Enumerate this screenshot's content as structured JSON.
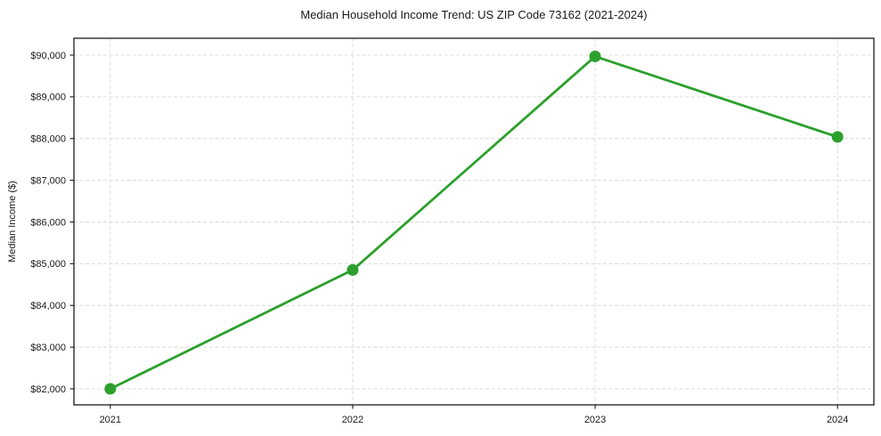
{
  "chart_data": {
    "type": "line",
    "title": "Median Household Income Trend: US ZIP Code 73162 (2021-2024)",
    "xlabel": "",
    "ylabel": "Median Income ($)",
    "categories": [
      "2021",
      "2022",
      "2023",
      "2024"
    ],
    "series": [
      {
        "name": "Median Household Income",
        "values": [
          82000,
          84850,
          89970,
          88040
        ]
      }
    ],
    "yticks": [
      82000,
      83000,
      84000,
      85000,
      86000,
      87000,
      88000,
      89000,
      90000
    ],
    "ytick_labels": [
      "$82,000",
      "$83,000",
      "$84,000",
      "$85,000",
      "$86,000",
      "$87,000",
      "$88,000",
      "$89,000",
      "$90,000"
    ],
    "ylim": [
      81616,
      90405
    ],
    "grid": "on",
    "grid_line_style": "dashed",
    "legend_position": "none",
    "colors": {
      "line": "#2ca02c",
      "marker": "#2ca02c",
      "grid": "#d9d9d9",
      "axis_border": "#1a1a1a",
      "text": "#1a1a1a",
      "background": "#ffffff"
    }
  }
}
